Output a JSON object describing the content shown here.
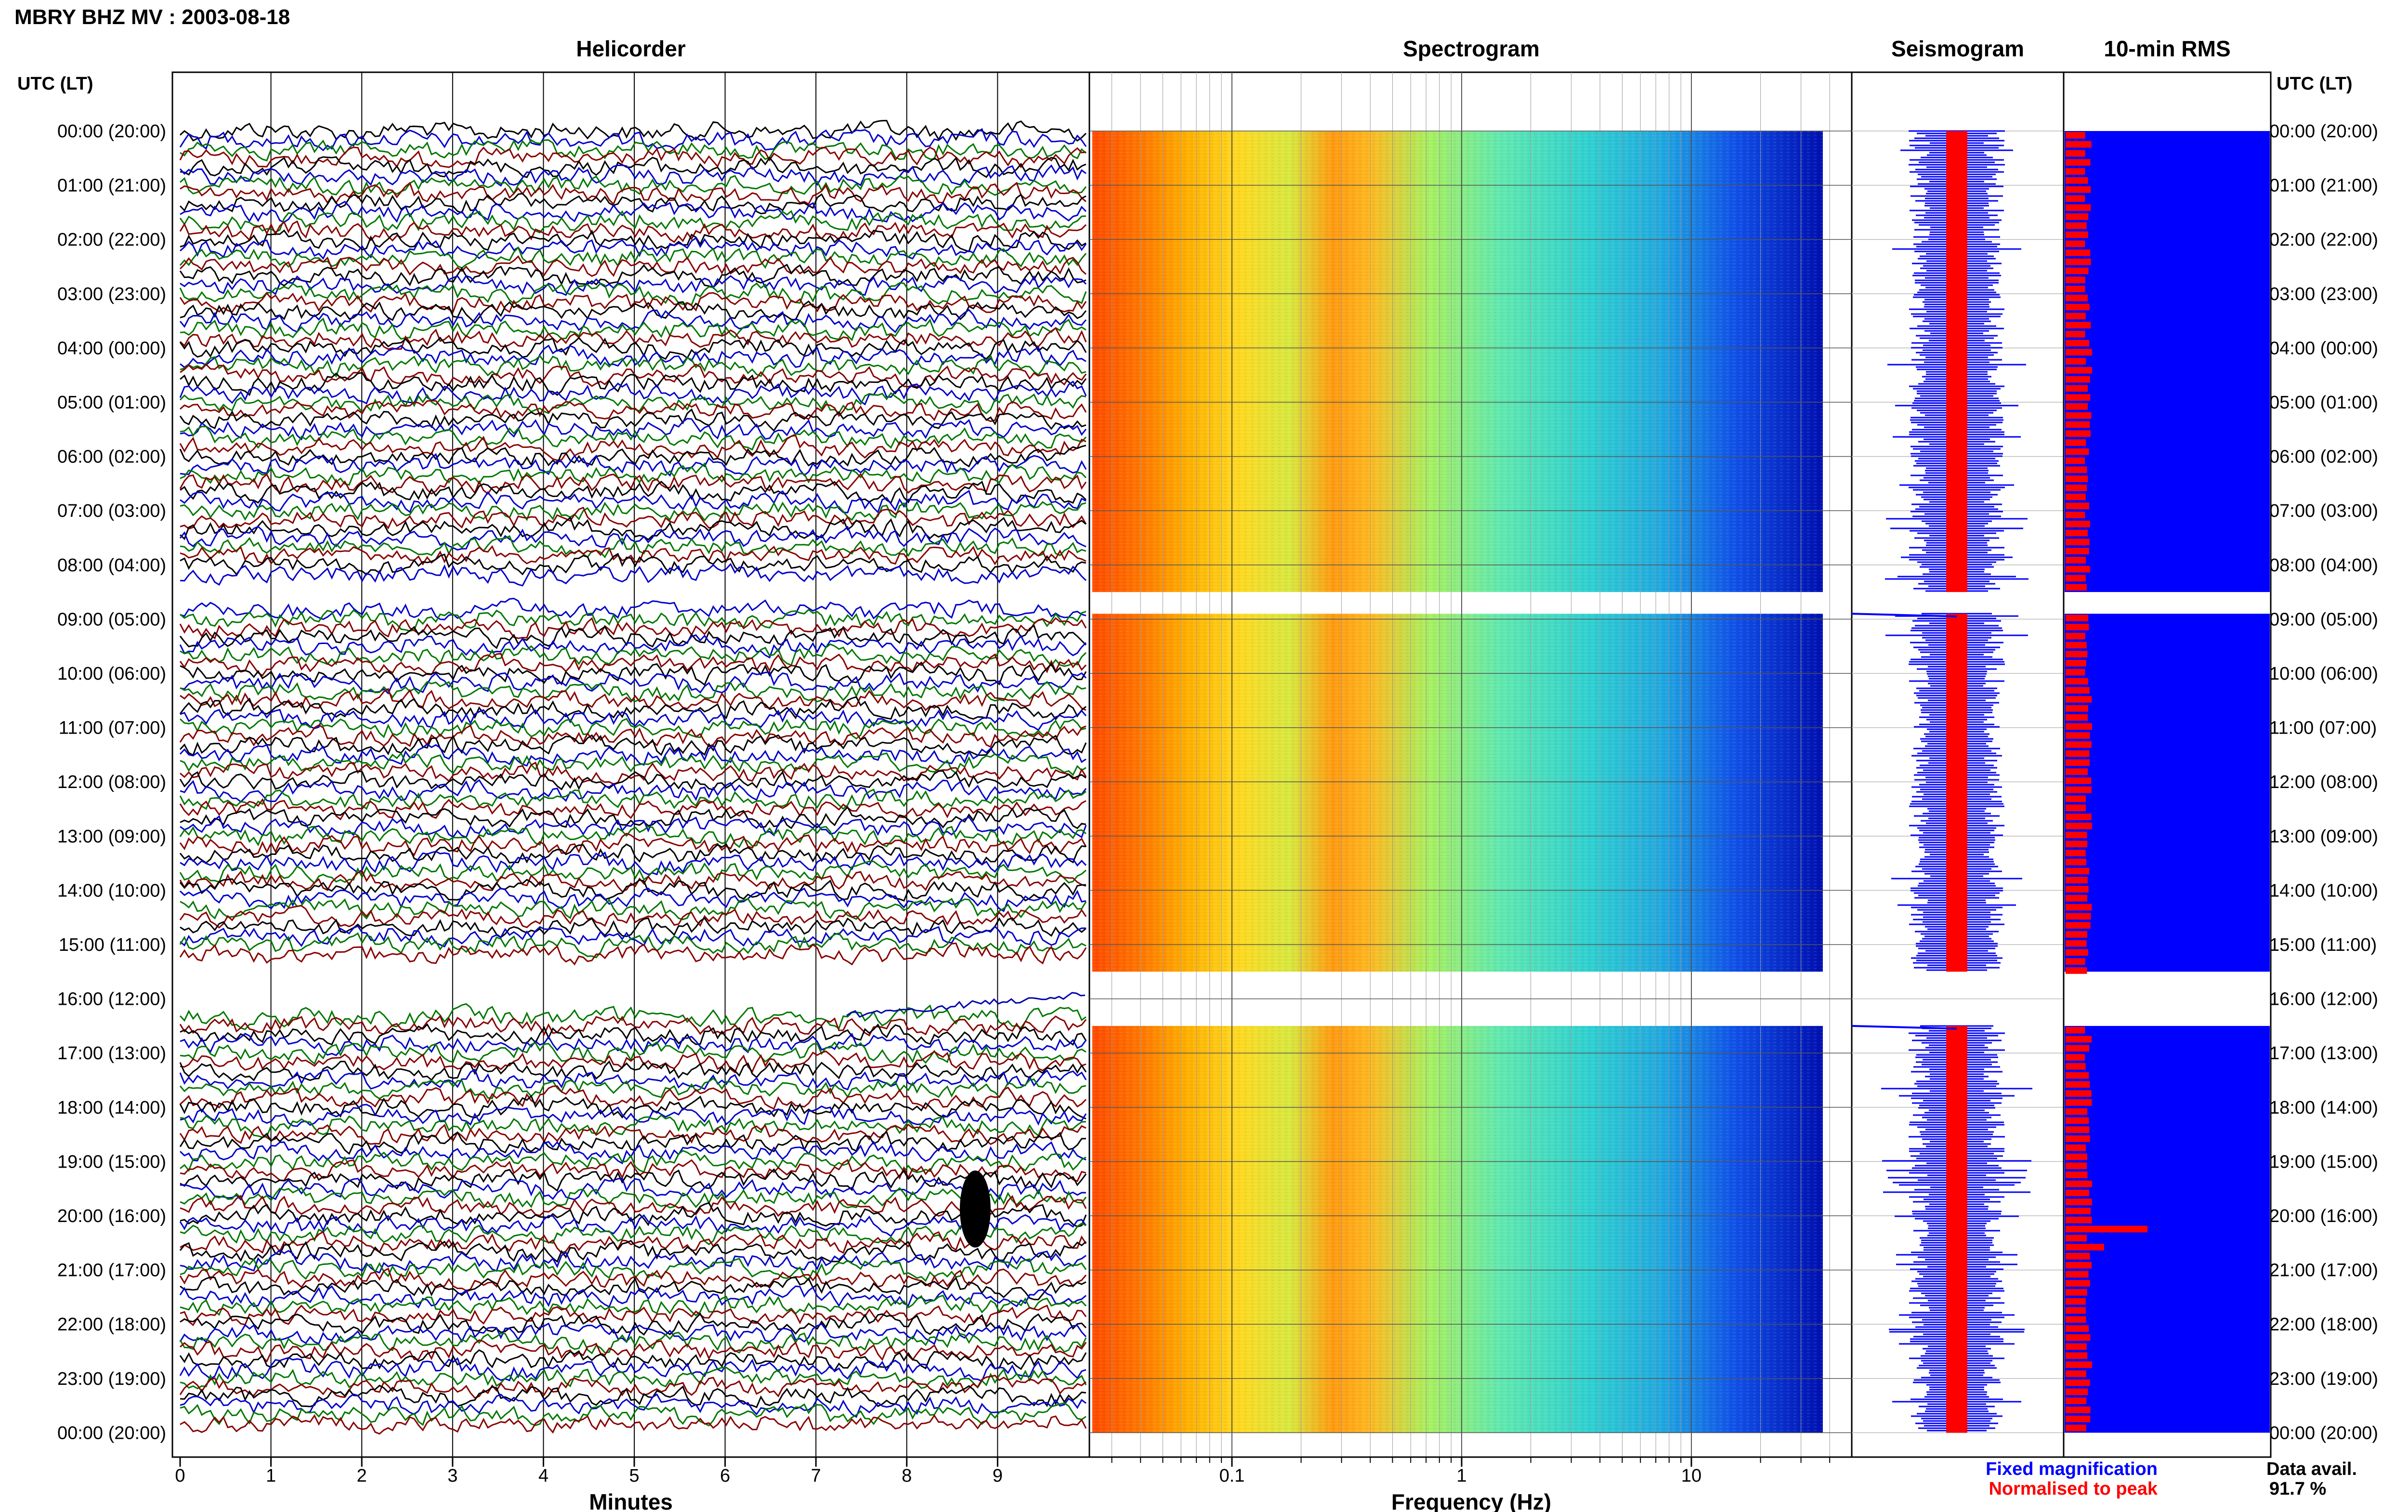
{
  "title": "MBRY BHZ MV : 2003-08-18",
  "panels": {
    "helicorder": "Helicorder",
    "spectrogram": "Spectrogram",
    "seismogram": "Seismogram",
    "rms": "10-min RMS"
  },
  "time_axis_label": "UTC (LT)",
  "time_labels": [
    "00:00 (20:00)",
    "01:00 (21:00)",
    "02:00 (22:00)",
    "03:00 (23:00)",
    "04:00 (00:00)",
    "05:00 (01:00)",
    "06:00 (02:00)",
    "07:00 (03:00)",
    "08:00 (04:00)",
    "09:00 (05:00)",
    "10:00 (06:00)",
    "11:00 (07:00)",
    "12:00 (08:00)",
    "13:00 (09:00)",
    "14:00 (10:00)",
    "15:00 (11:00)",
    "16:00 (12:00)",
    "17:00 (13:00)",
    "18:00 (14:00)",
    "19:00 (15:00)",
    "20:00 (16:00)",
    "21:00 (17:00)",
    "22:00 (18:00)",
    "23:00 (19:00)",
    "00:00 (20:00)"
  ],
  "x_axes": {
    "helicorder": {
      "label": "Minutes",
      "ticks": [
        "0",
        "1",
        "2",
        "3",
        "4",
        "5",
        "6",
        "7",
        "8",
        "9"
      ]
    },
    "spectrogram": {
      "label": "Frequency (Hz)",
      "ticks": [
        "0.1",
        "1",
        "10"
      ]
    }
  },
  "legend": {
    "fixed": "Fixed magnification",
    "normalised": "Normalised to peak",
    "fixed_color": "#0000ff",
    "normalised_color": "#ff0000"
  },
  "data_availability": {
    "label": "Data avail.",
    "value": "91.7 %"
  },
  "trace_colors": [
    "#000000",
    "#0000cc",
    "#007700",
    "#880000"
  ],
  "chart_data": {
    "type": "heatmap",
    "station": "MBRY BHZ MV",
    "date": "2003-08-18",
    "helicorder": {
      "xlim_minutes": [
        0,
        10
      ],
      "line_minutes": 10,
      "data_gaps_utc_hours": [
        [
          8.25,
          8.75
        ],
        [
          15.25,
          16.25
        ]
      ]
    },
    "spectrogram": {
      "xscale": "log",
      "xlim_hz": [
        0.02,
        50
      ]
    },
    "rms_10min": {
      "peaks_utc_hours": [
        8.8,
        16.3,
        20.2,
        20.5
      ],
      "data_availability_percent": 91.7
    }
  }
}
